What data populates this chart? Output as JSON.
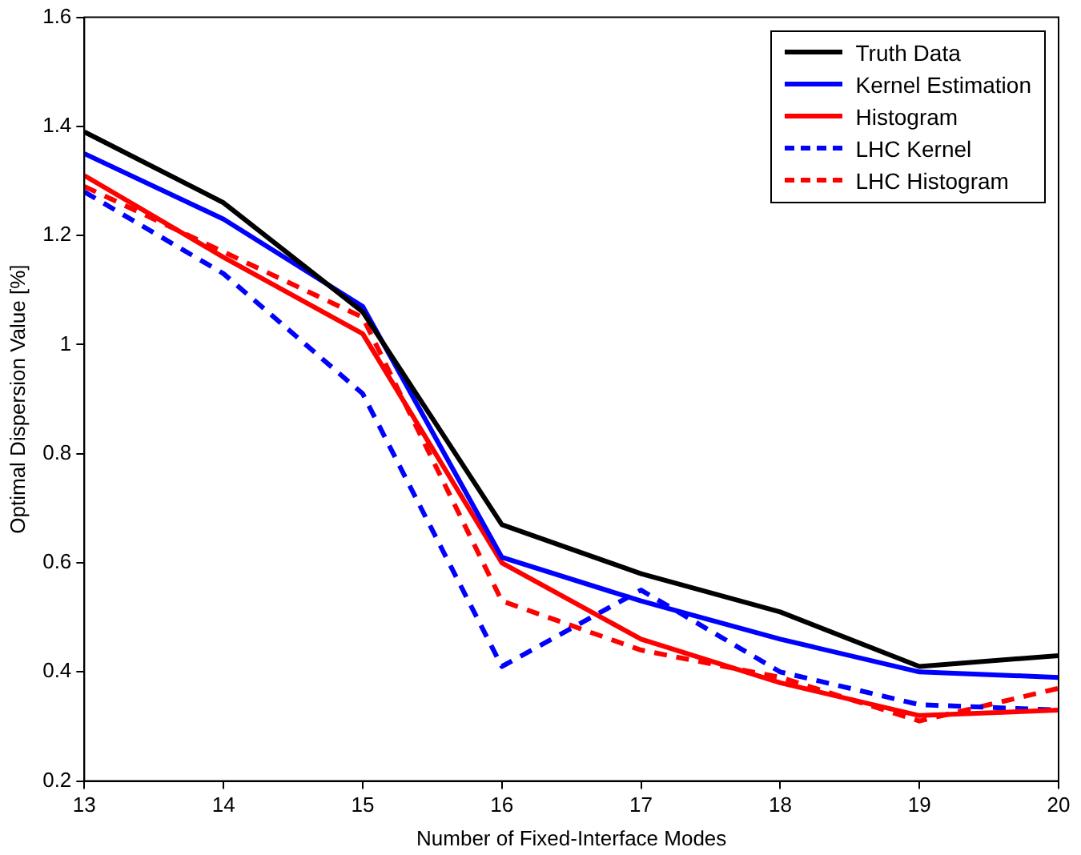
{
  "chart_data": {
    "type": "line",
    "xlabel": "Number of Fixed-Interface Modes",
    "ylabel": "Optimal Dispersion Value [%]",
    "x": [
      13,
      14,
      15,
      16,
      17,
      18,
      19,
      20
    ],
    "xlim": [
      13,
      20
    ],
    "xticks": [
      13,
      14,
      15,
      16,
      17,
      18,
      19,
      20
    ],
    "ylim": [
      0.2,
      1.6
    ],
    "yticks": [
      0.2,
      0.4,
      0.6,
      0.8,
      1,
      1.2,
      1.4,
      1.6
    ],
    "grid": false,
    "legend": "top right",
    "marker": "none",
    "series": [
      {
        "name": "Truth Data",
        "color": "#000000",
        "line_style": "solid",
        "values": [
          1.39,
          1.26,
          1.06,
          0.67,
          0.58,
          0.51,
          0.41,
          0.43
        ]
      },
      {
        "name": "Kernel Estimation",
        "color": "#0000ff",
        "line_style": "solid",
        "values": [
          1.35,
          1.23,
          1.07,
          0.61,
          0.53,
          0.46,
          0.4,
          0.39
        ]
      },
      {
        "name": "Histogram",
        "color": "#ff0000",
        "line_style": "solid",
        "values": [
          1.31,
          1.16,
          1.02,
          0.6,
          0.46,
          0.38,
          0.32,
          0.33
        ]
      },
      {
        "name": "LHC Kernel",
        "color": "#0000ff",
        "line_style": "dashed",
        "values": [
          1.28,
          1.13,
          0.91,
          0.41,
          0.55,
          0.4,
          0.34,
          0.33
        ]
      },
      {
        "name": "LHC Histogram",
        "color": "#ff0000",
        "line_style": "dashed",
        "values": [
          1.29,
          1.17,
          1.05,
          0.53,
          0.44,
          0.39,
          0.31,
          0.37
        ]
      }
    ]
  }
}
